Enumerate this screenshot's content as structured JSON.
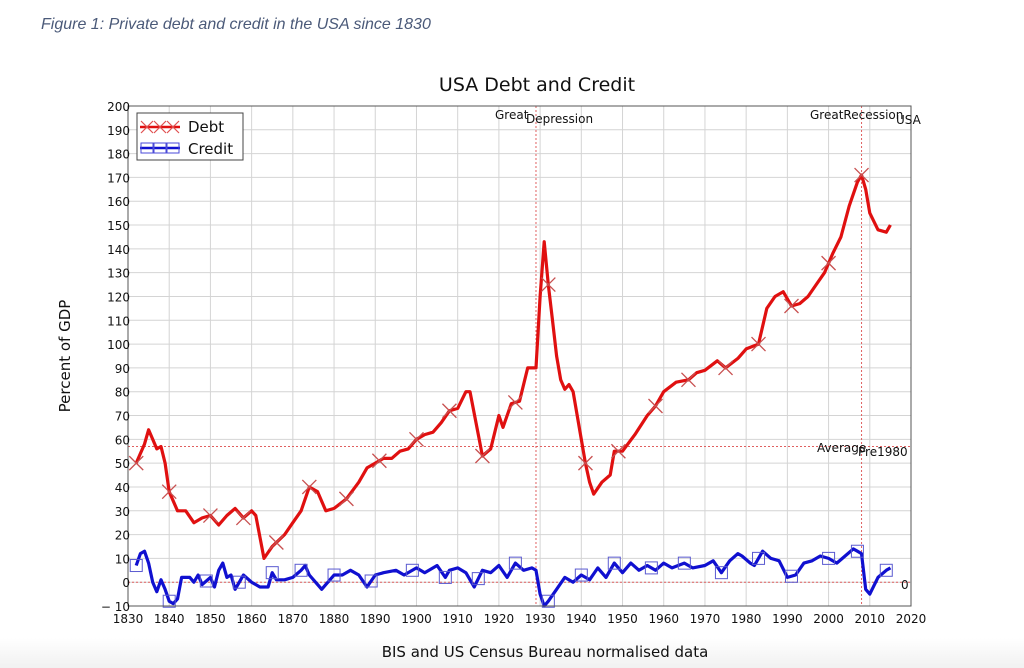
{
  "caption": "Figure 1: Private debt and credit in the USA since 1830",
  "chart_data": {
    "type": "line",
    "title": "USA Debt and Credit",
    "xlabel": "BIS and US Census Bureau normalised data",
    "ylabel": "Percent of GDP",
    "xlim": [
      1830,
      2020
    ],
    "ylim": [
      -10,
      200
    ],
    "xticks": [
      1830,
      1840,
      1850,
      1860,
      1870,
      1880,
      1890,
      1900,
      1910,
      1920,
      1930,
      1940,
      1950,
      1960,
      1970,
      1980,
      1990,
      2000,
      2010,
      2020
    ],
    "yticks": [
      -10,
      0,
      10,
      20,
      30,
      40,
      50,
      60,
      70,
      80,
      90,
      100,
      110,
      120,
      130,
      140,
      150,
      160,
      170,
      180,
      190,
      200
    ],
    "grid": true,
    "legend": "top-left",
    "series": [
      {
        "name": "Debt",
        "color": "#e01010",
        "marker": "x",
        "marker_years": [
          1832,
          1840,
          1850,
          1858,
          1866,
          1874,
          1883,
          1891,
          1900,
          1908,
          1916,
          1924,
          1932,
          1941,
          1949,
          1958,
          1966,
          1975,
          1983,
          1991,
          2000,
          2008
        ],
        "points": [
          [
            1832,
            50
          ],
          [
            1834,
            58
          ],
          [
            1835,
            64
          ],
          [
            1836,
            60
          ],
          [
            1837,
            56
          ],
          [
            1838,
            57
          ],
          [
            1839,
            50
          ],
          [
            1840,
            38
          ],
          [
            1842,
            30
          ],
          [
            1844,
            30
          ],
          [
            1846,
            25
          ],
          [
            1848,
            27
          ],
          [
            1850,
            28
          ],
          [
            1852,
            24
          ],
          [
            1854,
            28
          ],
          [
            1856,
            31
          ],
          [
            1858,
            27
          ],
          [
            1860,
            30
          ],
          [
            1861,
            28
          ],
          [
            1863,
            10
          ],
          [
            1865,
            15
          ],
          [
            1868,
            20
          ],
          [
            1870,
            25
          ],
          [
            1872,
            30
          ],
          [
            1874,
            40
          ],
          [
            1876,
            38
          ],
          [
            1878,
            30
          ],
          [
            1880,
            31
          ],
          [
            1883,
            35
          ],
          [
            1886,
            42
          ],
          [
            1888,
            48
          ],
          [
            1890,
            50
          ],
          [
            1892,
            52
          ],
          [
            1894,
            52
          ],
          [
            1896,
            55
          ],
          [
            1898,
            56
          ],
          [
            1900,
            60
          ],
          [
            1902,
            62
          ],
          [
            1904,
            63
          ],
          [
            1906,
            67
          ],
          [
            1908,
            72
          ],
          [
            1910,
            73
          ],
          [
            1912,
            80
          ],
          [
            1913,
            80
          ],
          [
            1915,
            62
          ],
          [
            1916,
            53
          ],
          [
            1918,
            56
          ],
          [
            1920,
            70
          ],
          [
            1921,
            65
          ],
          [
            1923,
            75
          ],
          [
            1925,
            76
          ],
          [
            1927,
            90
          ],
          [
            1929,
            90
          ],
          [
            1930,
            120
          ],
          [
            1931,
            143
          ],
          [
            1932,
            125
          ],
          [
            1933,
            110
          ],
          [
            1934,
            95
          ],
          [
            1935,
            85
          ],
          [
            1936,
            81
          ],
          [
            1937,
            83
          ],
          [
            1938,
            80
          ],
          [
            1940,
            60
          ],
          [
            1941,
            50
          ],
          [
            1942,
            42
          ],
          [
            1943,
            37
          ],
          [
            1945,
            42
          ],
          [
            1947,
            45
          ],
          [
            1948,
            55
          ],
          [
            1950,
            55
          ],
          [
            1953,
            62
          ],
          [
            1956,
            70
          ],
          [
            1958,
            74
          ],
          [
            1960,
            80
          ],
          [
            1963,
            84
          ],
          [
            1966,
            85
          ],
          [
            1968,
            88
          ],
          [
            1970,
            89
          ],
          [
            1973,
            93
          ],
          [
            1975,
            90
          ],
          [
            1978,
            94
          ],
          [
            1980,
            98
          ],
          [
            1983,
            100
          ],
          [
            1985,
            115
          ],
          [
            1987,
            120
          ],
          [
            1989,
            122
          ],
          [
            1991,
            116
          ],
          [
            1993,
            117
          ],
          [
            1995,
            120
          ],
          [
            1997,
            125
          ],
          [
            1999,
            130
          ],
          [
            2001,
            138
          ],
          [
            2003,
            145
          ],
          [
            2005,
            158
          ],
          [
            2007,
            168
          ],
          [
            2008,
            171
          ],
          [
            2009,
            165
          ],
          [
            2010,
            155
          ],
          [
            2012,
            148
          ],
          [
            2014,
            147
          ],
          [
            2015,
            150
          ]
        ]
      },
      {
        "name": "Credit",
        "color": "#1010d0",
        "marker": "square",
        "marker_years": [
          1832,
          1840,
          1849,
          1857,
          1865,
          1872,
          1880,
          1889,
          1899,
          1907,
          1915,
          1924,
          1932,
          1940,
          1948,
          1957,
          1965,
          1974,
          1983,
          1991,
          2000,
          2007,
          2014
        ],
        "points": [
          [
            1832,
            7
          ],
          [
            1833,
            12
          ],
          [
            1834,
            13
          ],
          [
            1835,
            8
          ],
          [
            1836,
            0
          ],
          [
            1837,
            -4
          ],
          [
            1838,
            1
          ],
          [
            1839,
            -3
          ],
          [
            1840,
            -8
          ],
          [
            1841,
            -9
          ],
          [
            1842,
            -7
          ],
          [
            1843,
            2
          ],
          [
            1845,
            2
          ],
          [
            1846,
            0
          ],
          [
            1847,
            3
          ],
          [
            1848,
            -1
          ],
          [
            1850,
            2
          ],
          [
            1851,
            -2
          ],
          [
            1852,
            5
          ],
          [
            1853,
            8
          ],
          [
            1854,
            2
          ],
          [
            1855,
            3
          ],
          [
            1856,
            -3
          ],
          [
            1857,
            0
          ],
          [
            1858,
            3
          ],
          [
            1860,
            0
          ],
          [
            1862,
            -2
          ],
          [
            1864,
            -2
          ],
          [
            1865,
            4
          ],
          [
            1866,
            1
          ],
          [
            1868,
            1
          ],
          [
            1870,
            2
          ],
          [
            1872,
            5
          ],
          [
            1873,
            7
          ],
          [
            1874,
            3
          ],
          [
            1876,
            -1
          ],
          [
            1877,
            -3
          ],
          [
            1878,
            -1
          ],
          [
            1880,
            3
          ],
          [
            1882,
            3
          ],
          [
            1884,
            5
          ],
          [
            1886,
            3
          ],
          [
            1888,
            -2
          ],
          [
            1890,
            3
          ],
          [
            1892,
            4
          ],
          [
            1895,
            5
          ],
          [
            1897,
            3
          ],
          [
            1900,
            6
          ],
          [
            1902,
            4
          ],
          [
            1905,
            7
          ],
          [
            1907,
            2
          ],
          [
            1908,
            5
          ],
          [
            1910,
            6
          ],
          [
            1912,
            4
          ],
          [
            1914,
            -2
          ],
          [
            1916,
            5
          ],
          [
            1918,
            4
          ],
          [
            1920,
            7
          ],
          [
            1922,
            2
          ],
          [
            1924,
            8
          ],
          [
            1926,
            5
          ],
          [
            1928,
            6
          ],
          [
            1929,
            5
          ],
          [
            1930,
            -5
          ],
          [
            1931,
            -10
          ],
          [
            1932,
            -8
          ],
          [
            1934,
            -3
          ],
          [
            1936,
            2
          ],
          [
            1938,
            0
          ],
          [
            1940,
            3
          ],
          [
            1942,
            1
          ],
          [
            1944,
            6
          ],
          [
            1946,
            2
          ],
          [
            1948,
            8
          ],
          [
            1950,
            4
          ],
          [
            1952,
            8
          ],
          [
            1954,
            5
          ],
          [
            1956,
            7
          ],
          [
            1958,
            5
          ],
          [
            1960,
            8
          ],
          [
            1962,
            6
          ],
          [
            1965,
            8
          ],
          [
            1967,
            6
          ],
          [
            1970,
            7
          ],
          [
            1972,
            9
          ],
          [
            1974,
            4
          ],
          [
            1976,
            9
          ],
          [
            1978,
            12
          ],
          [
            1979,
            11
          ],
          [
            1981,
            8
          ],
          [
            1982,
            7
          ],
          [
            1984,
            13
          ],
          [
            1986,
            10
          ],
          [
            1988,
            9
          ],
          [
            1990,
            2
          ],
          [
            1992,
            3
          ],
          [
            1994,
            8
          ],
          [
            1996,
            9
          ],
          [
            1998,
            11
          ],
          [
            2000,
            10
          ],
          [
            2002,
            8
          ],
          [
            2004,
            11
          ],
          [
            2006,
            14
          ],
          [
            2007,
            13
          ],
          [
            2008,
            12
          ],
          [
            2009,
            -3
          ],
          [
            2010,
            -5
          ],
          [
            2012,
            2
          ],
          [
            2014,
            5
          ],
          [
            2015,
            6
          ]
        ]
      }
    ],
    "reference_lines": {
      "vertical": [
        {
          "x": 1929,
          "label_a": "Great",
          "label_b": "Depression"
        },
        {
          "x": 2008,
          "label_a": "GreatRecession",
          "label_b": "USA"
        }
      ],
      "horizontal": [
        {
          "y": 57,
          "label_a": "Average",
          "label_b": "Pre1980"
        },
        {
          "y": 0,
          "label_a": "0"
        }
      ]
    }
  }
}
